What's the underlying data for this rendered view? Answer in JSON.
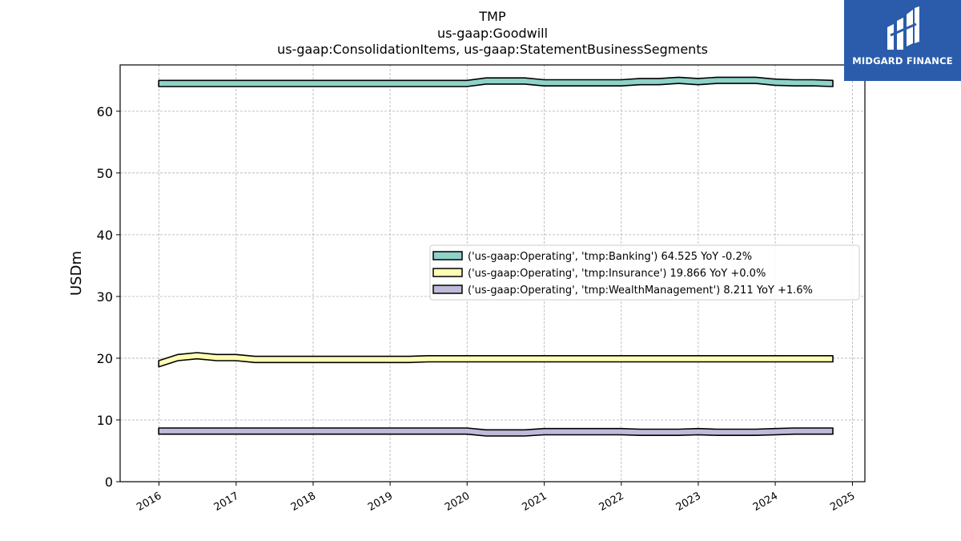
{
  "chart_data": {
    "type": "area",
    "title": [
      "TMP",
      "us-gaap:Goodwill",
      "us-gaap:ConsolidationItems, us-gaap:StatementBusinessSegments"
    ],
    "xlabel": "",
    "ylabel": "USDm",
    "ylim": [
      0,
      67.5
    ],
    "xlim": [
      "2015-07-01",
      "2025-03-01"
    ],
    "yticks": [
      0,
      10,
      20,
      30,
      40,
      50,
      60
    ],
    "xticks": [
      "2016",
      "2017",
      "2018",
      "2019",
      "2020",
      "2021",
      "2022",
      "2023",
      "2024",
      "2025"
    ],
    "grid": true,
    "legend_position": "center-right",
    "band_width": 1.0,
    "series": [
      {
        "name": "('us-gaap:Operating', 'tmp:Banking') 64.525 YoY -0.2%",
        "color": "#8dd3c7",
        "x": [
          "2015-12-31",
          "2016-03-31",
          "2016-06-30",
          "2016-09-30",
          "2016-12-31",
          "2017-03-31",
          "2017-06-30",
          "2017-09-30",
          "2017-12-31",
          "2018-03-31",
          "2018-06-30",
          "2018-09-30",
          "2018-12-31",
          "2019-03-31",
          "2019-06-30",
          "2019-09-30",
          "2019-12-31",
          "2020-03-31",
          "2020-06-30",
          "2020-09-30",
          "2020-12-31",
          "2021-03-31",
          "2021-06-30",
          "2021-09-30",
          "2021-12-31",
          "2022-03-31",
          "2022-06-30",
          "2022-09-30",
          "2022-12-31",
          "2023-03-31",
          "2023-06-30",
          "2023-09-30",
          "2023-12-31",
          "2024-03-31",
          "2024-06-30",
          "2024-09-30"
        ],
        "values": [
          64.5,
          64.5,
          64.5,
          64.5,
          64.5,
          64.5,
          64.5,
          64.5,
          64.5,
          64.5,
          64.5,
          64.5,
          64.5,
          64.5,
          64.5,
          64.5,
          64.5,
          64.9,
          64.9,
          64.9,
          64.6,
          64.6,
          64.6,
          64.6,
          64.6,
          64.8,
          64.8,
          65.0,
          64.8,
          65.0,
          65.0,
          65.0,
          64.7,
          64.6,
          64.6,
          64.5
        ]
      },
      {
        "name": "('us-gaap:Operating', 'tmp:Insurance') 19.866 YoY +0.0%",
        "color": "#ffffb3",
        "x": [
          "2015-12-31",
          "2016-03-31",
          "2016-06-30",
          "2016-09-30",
          "2016-12-31",
          "2017-03-31",
          "2017-06-30",
          "2017-09-30",
          "2017-12-31",
          "2018-03-31",
          "2018-06-30",
          "2018-09-30",
          "2018-12-31",
          "2019-03-31",
          "2019-06-30",
          "2019-09-30",
          "2019-12-31",
          "2020-03-31",
          "2020-06-30",
          "2020-09-30",
          "2020-12-31",
          "2021-03-31",
          "2021-06-30",
          "2021-09-30",
          "2021-12-31",
          "2022-03-31",
          "2022-06-30",
          "2022-09-30",
          "2022-12-31",
          "2023-03-31",
          "2023-06-30",
          "2023-09-30",
          "2023-12-31",
          "2024-03-31",
          "2024-06-30",
          "2024-09-30"
        ],
        "values": [
          19.1,
          20.1,
          20.4,
          20.1,
          20.1,
          19.8,
          19.8,
          19.8,
          19.8,
          19.8,
          19.8,
          19.8,
          19.8,
          19.8,
          19.9,
          19.9,
          19.9,
          19.9,
          19.9,
          19.9,
          19.9,
          19.9,
          19.9,
          19.9,
          19.9,
          19.9,
          19.9,
          19.9,
          19.9,
          19.9,
          19.9,
          19.9,
          19.9,
          19.9,
          19.9,
          19.9
        ]
      },
      {
        "name": "('us-gaap:Operating', 'tmp:WealthManagement') 8.211 YoY +1.6%",
        "color": "#bebada",
        "x": [
          "2015-12-31",
          "2016-03-31",
          "2016-06-30",
          "2016-09-30",
          "2016-12-31",
          "2017-03-31",
          "2017-06-30",
          "2017-09-30",
          "2017-12-31",
          "2018-03-31",
          "2018-06-30",
          "2018-09-30",
          "2018-12-31",
          "2019-03-31",
          "2019-06-30",
          "2019-09-30",
          "2019-12-31",
          "2020-03-31",
          "2020-06-30",
          "2020-09-30",
          "2020-12-31",
          "2021-03-31",
          "2021-06-30",
          "2021-09-30",
          "2021-12-31",
          "2022-03-31",
          "2022-06-30",
          "2022-09-30",
          "2022-12-31",
          "2023-03-31",
          "2023-06-30",
          "2023-09-30",
          "2023-12-31",
          "2024-03-31",
          "2024-06-30",
          "2024-09-30"
        ],
        "values": [
          8.2,
          8.2,
          8.2,
          8.2,
          8.2,
          8.2,
          8.2,
          8.2,
          8.2,
          8.2,
          8.2,
          8.2,
          8.2,
          8.2,
          8.2,
          8.2,
          8.2,
          7.9,
          7.9,
          7.9,
          8.1,
          8.1,
          8.1,
          8.1,
          8.1,
          8.0,
          8.0,
          8.0,
          8.1,
          8.0,
          8.0,
          8.0,
          8.1,
          8.2,
          8.2,
          8.2
        ]
      }
    ]
  },
  "logo": {
    "text": "MIDGARD FINANCE",
    "background": "#2a5cab"
  }
}
